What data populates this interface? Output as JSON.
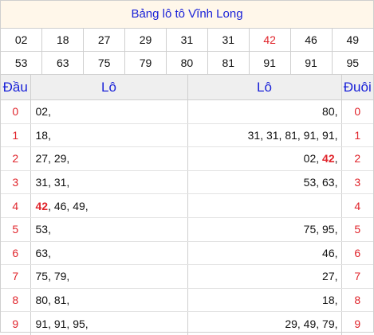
{
  "title": "Bảng lô tô Vĩnh Long",
  "numbers": [
    [
      {
        "v": "02",
        "red": false
      },
      {
        "v": "18",
        "red": false
      },
      {
        "v": "27",
        "red": false
      },
      {
        "v": "29",
        "red": false
      },
      {
        "v": "31",
        "red": false
      },
      {
        "v": "31",
        "red": false
      },
      {
        "v": "42",
        "red": true
      },
      {
        "v": "46",
        "red": false
      },
      {
        "v": "49",
        "red": false
      }
    ],
    [
      {
        "v": "53",
        "red": false
      },
      {
        "v": "63",
        "red": false
      },
      {
        "v": "75",
        "red": false
      },
      {
        "v": "79",
        "red": false
      },
      {
        "v": "80",
        "red": false
      },
      {
        "v": "81",
        "red": false
      },
      {
        "v": "91",
        "red": false
      },
      {
        "v": "91",
        "red": false
      },
      {
        "v": "95",
        "red": false
      }
    ]
  ],
  "headers": {
    "dau": "Đầu",
    "lo_left": "Lô",
    "lo_right": "Lô",
    "duoi": "Đuôi"
  },
  "rows": [
    {
      "dau": "0",
      "left": [
        [
          "02,",
          false
        ]
      ],
      "right": [
        [
          "80,",
          false
        ]
      ],
      "duoi": "0"
    },
    {
      "dau": "1",
      "left": [
        [
          "18,",
          false
        ]
      ],
      "right": [
        [
          "31, 31, 81, 91, 91,",
          false
        ]
      ],
      "duoi": "1"
    },
    {
      "dau": "2",
      "left": [
        [
          "27, 29,",
          false
        ]
      ],
      "right": [
        [
          "02, ",
          false
        ],
        [
          "42",
          true
        ],
        [
          ",",
          false
        ]
      ],
      "duoi": "2"
    },
    {
      "dau": "3",
      "left": [
        [
          "31, 31,",
          false
        ]
      ],
      "right": [
        [
          "53, 63,",
          false
        ]
      ],
      "duoi": "3"
    },
    {
      "dau": "4",
      "left": [
        [
          "42",
          true
        ],
        [
          ", 46, 49,",
          false
        ]
      ],
      "right": [],
      "duoi": "4"
    },
    {
      "dau": "5",
      "left": [
        [
          "53,",
          false
        ]
      ],
      "right": [
        [
          "75, 95,",
          false
        ]
      ],
      "duoi": "5"
    },
    {
      "dau": "6",
      "left": [
        [
          "63,",
          false
        ]
      ],
      "right": [
        [
          "46,",
          false
        ]
      ],
      "duoi": "6"
    },
    {
      "dau": "7",
      "left": [
        [
          "75, 79,",
          false
        ]
      ],
      "right": [
        [
          "27,",
          false
        ]
      ],
      "duoi": "7"
    },
    {
      "dau": "8",
      "left": [
        [
          "80, 81,",
          false
        ]
      ],
      "right": [
        [
          "18,",
          false
        ]
      ],
      "duoi": "8"
    },
    {
      "dau": "9",
      "left": [
        [
          "91, 91, 95,",
          false
        ]
      ],
      "right": [
        [
          "29, 49, 79,",
          false
        ]
      ],
      "duoi": "9"
    }
  ],
  "colors": {
    "accent": "#1a22d8",
    "highlight": "#e0242b",
    "title_bg": "#fff7ea",
    "header_bg": "#efefef"
  }
}
